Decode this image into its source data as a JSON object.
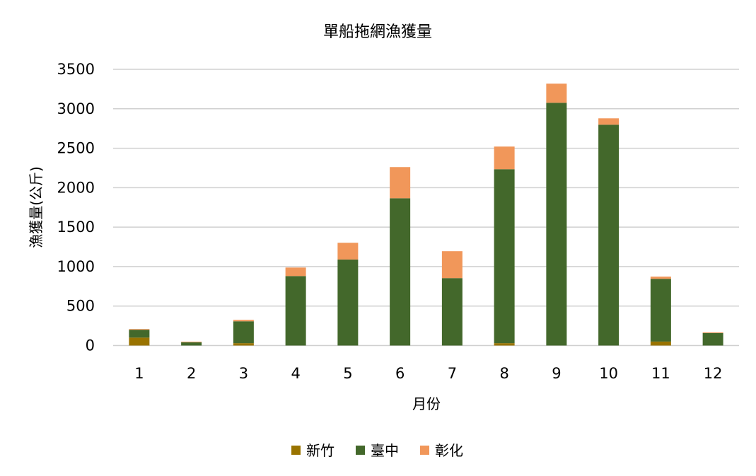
{
  "chart_data": {
    "type": "bar",
    "stacked": true,
    "title": "單船拖網漁獲量",
    "xlabel": "月份",
    "ylabel": "漁獲量(公斤)",
    "ylim": [
      0,
      3500
    ],
    "yticks": [
      0,
      500,
      1000,
      1500,
      2000,
      2500,
      3000,
      3500
    ],
    "grid": true,
    "legend_position": "bottom",
    "categories": [
      "1",
      "2",
      "3",
      "4",
      "5",
      "6",
      "7",
      "8",
      "9",
      "10",
      "11",
      "12"
    ],
    "series": [
      {
        "name": "新竹",
        "color": "#997300",
        "values": [
          100,
          0,
          30,
          0,
          0,
          0,
          0,
          30,
          0,
          0,
          50,
          0
        ]
      },
      {
        "name": "臺中",
        "color": "#43682b",
        "values": [
          100,
          40,
          277,
          880,
          1090,
          1866,
          854,
          2204,
          3076,
          2798,
          795,
          158
        ]
      },
      {
        "name": "彰化",
        "color": "#f1975a",
        "values": [
          9,
          8,
          18,
          108,
          212,
          395,
          341,
          287,
          242,
          81,
          28,
          9
        ]
      }
    ]
  }
}
